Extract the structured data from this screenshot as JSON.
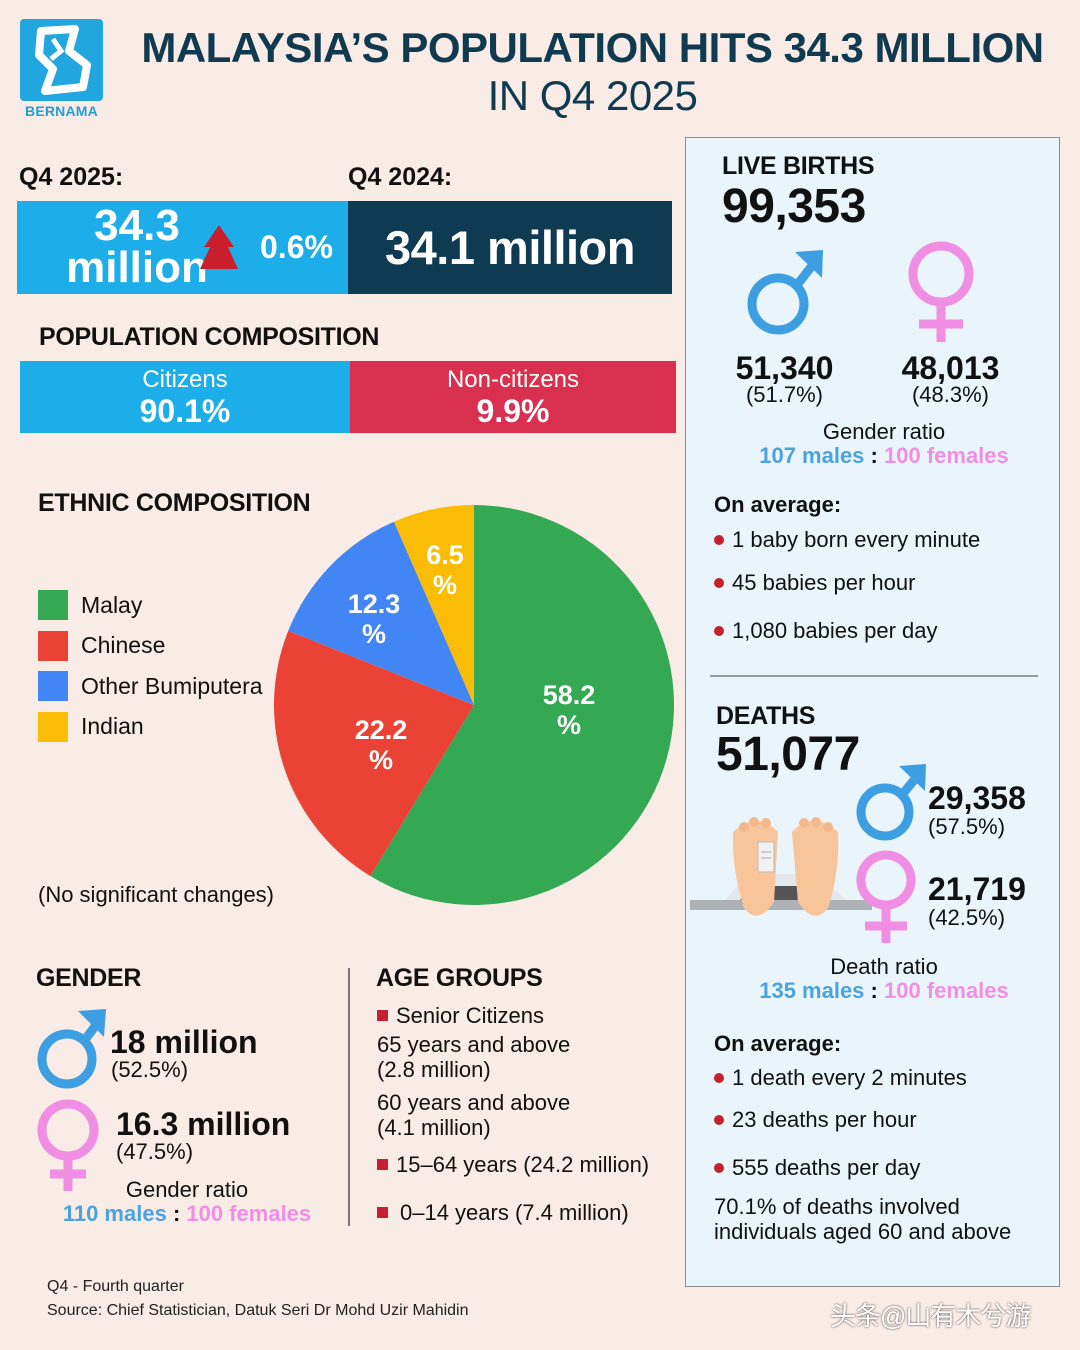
{
  "header": {
    "logo_text": "BERNAMA",
    "title_line1": "MALAYSIA’S POPULATION HITS 34.3 MILLION",
    "title_line2": "IN Q4 2025"
  },
  "population": {
    "current_label": "Q4 2025:",
    "current_value_num": "34.3",
    "current_value_unit": "million",
    "change": "0.6%",
    "previous_label": "Q4 2024:",
    "previous_value": "34.1 million"
  },
  "composition": {
    "title": "POPULATION COMPOSITION",
    "segments": [
      {
        "label": "Citizens",
        "value": "90.1%",
        "color": "#1daeea"
      },
      {
        "label": "Non-citizens",
        "value": "9.9%",
        "color": "#d9304f"
      }
    ]
  },
  "ethnic": {
    "title": "ETHNIC COMPOSITION",
    "legend": [
      {
        "label": "Malay",
        "color": "#34a853"
      },
      {
        "label": "Chinese",
        "color": "#ea4335"
      },
      {
        "label": "Other Bumiputera",
        "color": "#4285f4"
      },
      {
        "label": "Indian",
        "color": "#fbbc05"
      }
    ],
    "slice_labels": [
      {
        "num": "58.2",
        "pct": "%"
      },
      {
        "num": "22.2",
        "pct": "%"
      },
      {
        "num": "12.3",
        "pct": "%"
      },
      {
        "num": "6.5",
        "pct": "%"
      }
    ],
    "note": "(No significant changes)"
  },
  "chart_data": {
    "type": "pie",
    "title": "ETHNIC COMPOSITION",
    "categories": [
      "Malay",
      "Chinese",
      "Other Bumiputera",
      "Indian"
    ],
    "values": [
      58.2,
      22.2,
      12.3,
      6.5
    ],
    "colors": [
      "#34a853",
      "#ea4335",
      "#4285f4",
      "#fbbc05"
    ],
    "unit": "%",
    "legend_position": "left",
    "annotation": "(No significant changes)"
  },
  "gender": {
    "title": "GENDER",
    "male_value": "18 million",
    "male_pct": "(52.5%)",
    "female_value": "16.3 million",
    "female_pct": "(47.5%)",
    "ratio_title": "Gender ratio",
    "ratio_male": "110 males",
    "ratio_sep": ":",
    "ratio_female": "100 females"
  },
  "age_groups": {
    "title": "AGE GROUPS",
    "senior_label": "Senior Citizens",
    "senior_65": "65 years and above",
    "senior_65_val": "(2.8 million)",
    "senior_60": "60 years and above",
    "senior_60_val": "(4.1 million)",
    "working": "15–64 years (24.2 million)",
    "young": "0–14 years (7.4 million)"
  },
  "births": {
    "title": "LIVE BIRTHS",
    "total": "99,353",
    "male_value": "51,340",
    "male_pct": "(51.7%)",
    "female_value": "48,013",
    "female_pct": "(48.3%)",
    "ratio_title": "Gender ratio",
    "ratio_male": "107 males",
    "ratio_sep": ":",
    "ratio_female": "100 females",
    "avg_title": "On average:",
    "avg": [
      "1 baby born every minute",
      "45 babies per hour",
      "1,080 babies per day"
    ]
  },
  "deaths": {
    "title": "DEATHS",
    "total": "51,077",
    "male_value": "29,358",
    "male_pct": "(57.5%)",
    "female_value": "21,719",
    "female_pct": "(42.5%)",
    "ratio_title": "Death ratio",
    "ratio_male": "135 males",
    "ratio_sep": ":",
    "ratio_female": "100 females",
    "avg_title": "On average:",
    "avg": [
      "1 death every 2 minutes",
      "23 deaths per hour",
      "555 deaths per day"
    ],
    "elderly_note_l1": "70.1% of deaths involved",
    "elderly_note_l2": "individuals aged 60 and above"
  },
  "footer": {
    "note": "Q4 - Fourth quarter",
    "source": "Source: Chief Statistician, Datuk Seri Dr Mohd Uzir Mahidin",
    "watermark": "头条@山有木兮游"
  },
  "colors": {
    "brand_blue": "#1daeea",
    "navy": "#0e3a52",
    "crimson": "#d9304f",
    "male": "#4aa3df",
    "female": "#f08ee3",
    "bullet_red": "#c4202f",
    "background": "#f9ebe5",
    "panel": "#eaf5fb"
  }
}
